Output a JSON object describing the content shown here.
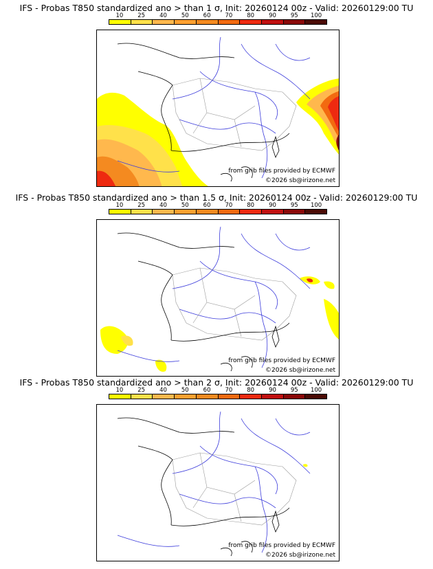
{
  "scale": {
    "ticks": [
      "10",
      "25",
      "40",
      "50",
      "60",
      "70",
      "80",
      "90",
      "95",
      "100"
    ],
    "colors": [
      "#ffff00",
      "#ffe14a",
      "#ffb84d",
      "#ffa030",
      "#f48a20",
      "#f26a10",
      "#ee2a10",
      "#c01010",
      "#8a0808",
      "#4a0a04"
    ]
  },
  "panels": [
    {
      "title": "IFS - Probas T850  standardized ano > than 1 σ, Init: 20260124 00z - Valid: 20260129:00 TU",
      "credit_source": "from grib files provided by ECMWF",
      "credit_copyright": "©2026 sb@irizone.net"
    },
    {
      "title": "IFS - Probas T850  standardized ano > than 1.5 σ, Init: 20260124 00z - Valid: 20260129:00 TU",
      "credit_source": "from grib files provided by ECMWF",
      "credit_copyright": "©2026 sb@irizone.net"
    },
    {
      "title": "IFS - Probas T850  standardized ano > than 2 σ, Init: 20260124 00z - Valid: 20260129:00 TU",
      "credit_source": "from grib files provided by ECMWF",
      "credit_copyright": "©2026 sb@irizone.net"
    }
  ]
}
